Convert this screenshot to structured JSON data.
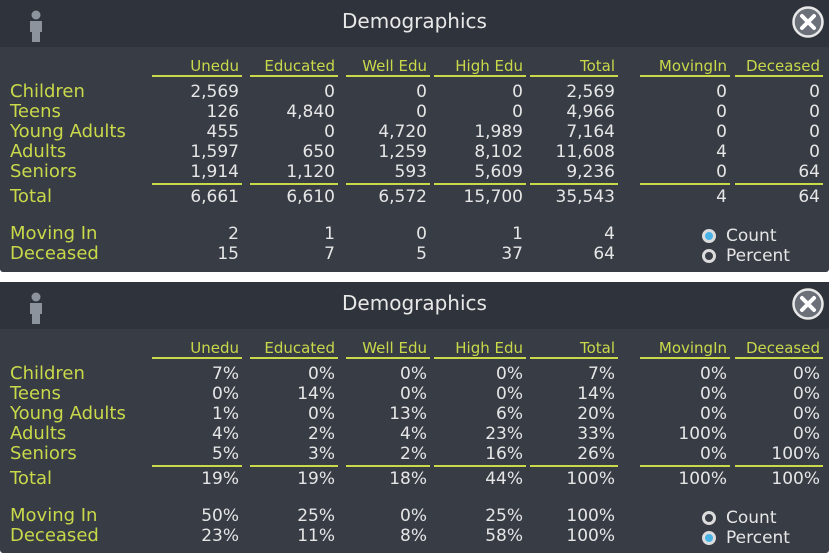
{
  "panels": [
    {
      "title": "Demographics",
      "columns": [
        "Unedu",
        "Educated",
        "Well Edu",
        "High Edu",
        "Total",
        "MovingIn",
        "Deceased"
      ],
      "rows": [
        {
          "label": "Children",
          "values": [
            "2,569",
            "0",
            "0",
            "0",
            "2,569",
            "0",
            "0"
          ]
        },
        {
          "label": "Teens",
          "values": [
            "126",
            "4,840",
            "0",
            "0",
            "4,966",
            "0",
            "0"
          ]
        },
        {
          "label": "Young Adults",
          "values": [
            "455",
            "0",
            "4,720",
            "1,989",
            "7,164",
            "0",
            "0"
          ]
        },
        {
          "label": "Adults",
          "values": [
            "1,597",
            "650",
            "1,259",
            "8,102",
            "11,608",
            "4",
            "0"
          ]
        },
        {
          "label": "Seniors",
          "values": [
            "1,914",
            "1,120",
            "593",
            "5,609",
            "9,236",
            "0",
            "64"
          ]
        }
      ],
      "total": {
        "label": "Total",
        "values": [
          "6,661",
          "6,610",
          "6,572",
          "15,700",
          "35,543",
          "4",
          "64"
        ]
      },
      "extra": [
        {
          "label": "Moving In",
          "values": [
            "2",
            "1",
            "0",
            "1",
            "4"
          ]
        },
        {
          "label": "Deceased",
          "values": [
            "15",
            "7",
            "5",
            "37",
            "64"
          ]
        }
      ],
      "radio": [
        {
          "label": "Count",
          "selected": true
        },
        {
          "label": "Percent",
          "selected": false
        }
      ]
    },
    {
      "title": "Demographics",
      "columns": [
        "Unedu",
        "Educated",
        "Well Edu",
        "High Edu",
        "Total",
        "MovingIn",
        "Deceased"
      ],
      "rows": [
        {
          "label": "Children",
          "values": [
            "7%",
            "0%",
            "0%",
            "0%",
            "7%",
            "0%",
            "0%"
          ]
        },
        {
          "label": "Teens",
          "values": [
            "0%",
            "14%",
            "0%",
            "0%",
            "14%",
            "0%",
            "0%"
          ]
        },
        {
          "label": "Young Adults",
          "values": [
            "1%",
            "0%",
            "13%",
            "6%",
            "20%",
            "0%",
            "0%"
          ]
        },
        {
          "label": "Adults",
          "values": [
            "4%",
            "2%",
            "4%",
            "23%",
            "33%",
            "100%",
            "0%"
          ]
        },
        {
          "label": "Seniors",
          "values": [
            "5%",
            "3%",
            "2%",
            "16%",
            "26%",
            "0%",
            "100%"
          ]
        }
      ],
      "total": {
        "label": "Total",
        "values": [
          "19%",
          "19%",
          "18%",
          "44%",
          "100%",
          "100%",
          "100%"
        ]
      },
      "extra": [
        {
          "label": "Moving In",
          "values": [
            "50%",
            "25%",
            "0%",
            "25%",
            "100%"
          ]
        },
        {
          "label": "Deceased",
          "values": [
            "23%",
            "11%",
            "8%",
            "58%",
            "100%"
          ]
        }
      ],
      "radio": [
        {
          "label": "Count",
          "selected": false
        },
        {
          "label": "Percent",
          "selected": true
        }
      ]
    }
  ],
  "colors": {
    "panel_bg": "#373c45",
    "titlebar_bg": "#2f333b",
    "accent_yellow": "#c9d94a",
    "text": "#e6e6e6",
    "radio_selected": "#4ab3e6"
  },
  "icons": {
    "title_left": "person-icon",
    "title_right": "close-icon"
  }
}
